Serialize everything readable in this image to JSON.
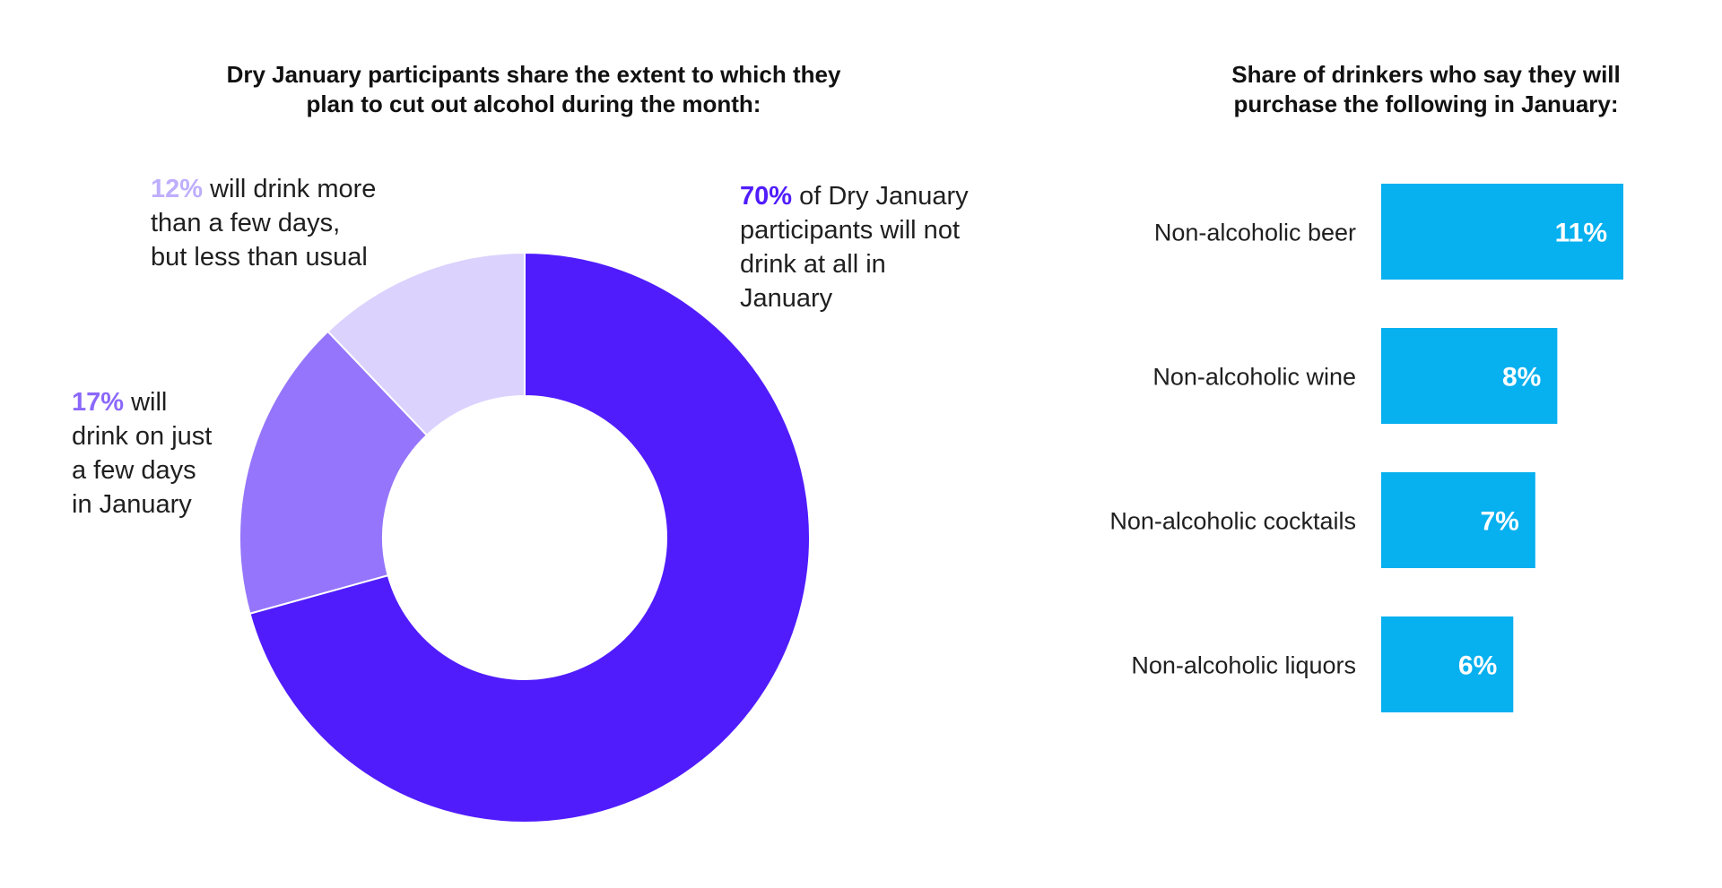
{
  "colors": {
    "slice_70": "#501cfc",
    "slice_17": "#9575fb",
    "slice_12": "#dbd2fe",
    "bar": "#07b0ef",
    "bar_label": "#ffffff"
  },
  "donut": {
    "title_lines": [
      "Dry January participants share the extent to which they",
      "plan to cut out alcohol during the month:"
    ],
    "annotations": {
      "a70": {
        "pct": "70%",
        "first_rest": " of Dry January",
        "lines": [
          "participants will not",
          "drink at all in",
          "January"
        ]
      },
      "a12": {
        "pct": "12%",
        "first_rest": " will drink more",
        "lines": [
          "than a few days,",
          "but less than usual"
        ]
      },
      "a17": {
        "pct": "17%",
        "first_rest": " will",
        "lines": [
          "drink on just",
          "a few days",
          "in January"
        ]
      }
    }
  },
  "bars": {
    "title_lines": [
      "Share of drinkers who say they will",
      "purchase the following in January:"
    ]
  },
  "chart_data": [
    {
      "type": "pie",
      "donut": true,
      "title": "Dry January participants share the extent to which they plan to cut out alcohol during the month:",
      "slices": [
        {
          "label": "will not drink at all in January",
          "value": 70
        },
        {
          "label": "will drink on just a few days in January",
          "value": 17
        },
        {
          "label": "will drink more than a few days, but less than usual",
          "value": 12
        }
      ]
    },
    {
      "type": "bar",
      "orientation": "horizontal",
      "title": "Share of drinkers who say they will purchase the following in January:",
      "categories": [
        "Non-alcoholic beer",
        "Non-alcoholic wine",
        "Non-alcoholic cocktails",
        "Non-alcoholic liquors"
      ],
      "values": [
        11,
        8,
        7,
        6
      ],
      "value_labels": [
        "11%",
        "8%",
        "7%",
        "6%"
      ],
      "xlim": [
        0,
        11
      ]
    }
  ]
}
